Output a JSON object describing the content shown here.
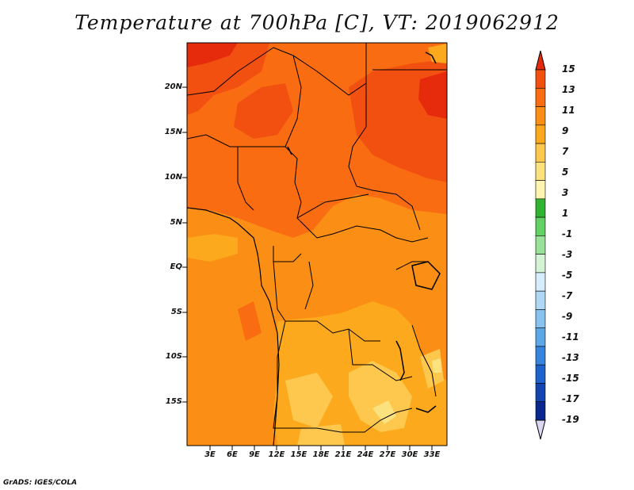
{
  "title": "Temperature at 700hPa [C], VT: 2019062912",
  "credit": "GrADS: IGES/COLA",
  "lat_labels": [
    "20N",
    "15N",
    "10N",
    "5N",
    "EQ",
    "5S",
    "10S",
    "15S"
  ],
  "lon_labels": [
    "3E",
    "6E",
    "9E",
    "12E",
    "15E",
    "18E",
    "21E",
    "24E",
    "27E",
    "30E",
    "33E"
  ],
  "colorbar": {
    "labels": [
      "15",
      "13",
      "11",
      "9",
      "7",
      "5",
      "3",
      "1",
      "-1",
      "-3",
      "-5",
      "-7",
      "-9",
      "-11",
      "-13",
      "-15",
      "-17",
      "-19"
    ],
    "colors": [
      "#e62a0c",
      "#f25010",
      "#f96c12",
      "#fb8e14",
      "#fca91e",
      "#fdc84d",
      "#fbe27f",
      "#fff5b0",
      "#31b331",
      "#63d163",
      "#9ae29a",
      "#d4f2d4",
      "#d6eefc",
      "#b0d8f5",
      "#88c2ee",
      "#5ca8e6",
      "#3684dc",
      "#1e62cc",
      "#1444b0",
      "#0a278e",
      "#000a5a"
    ]
  }
}
